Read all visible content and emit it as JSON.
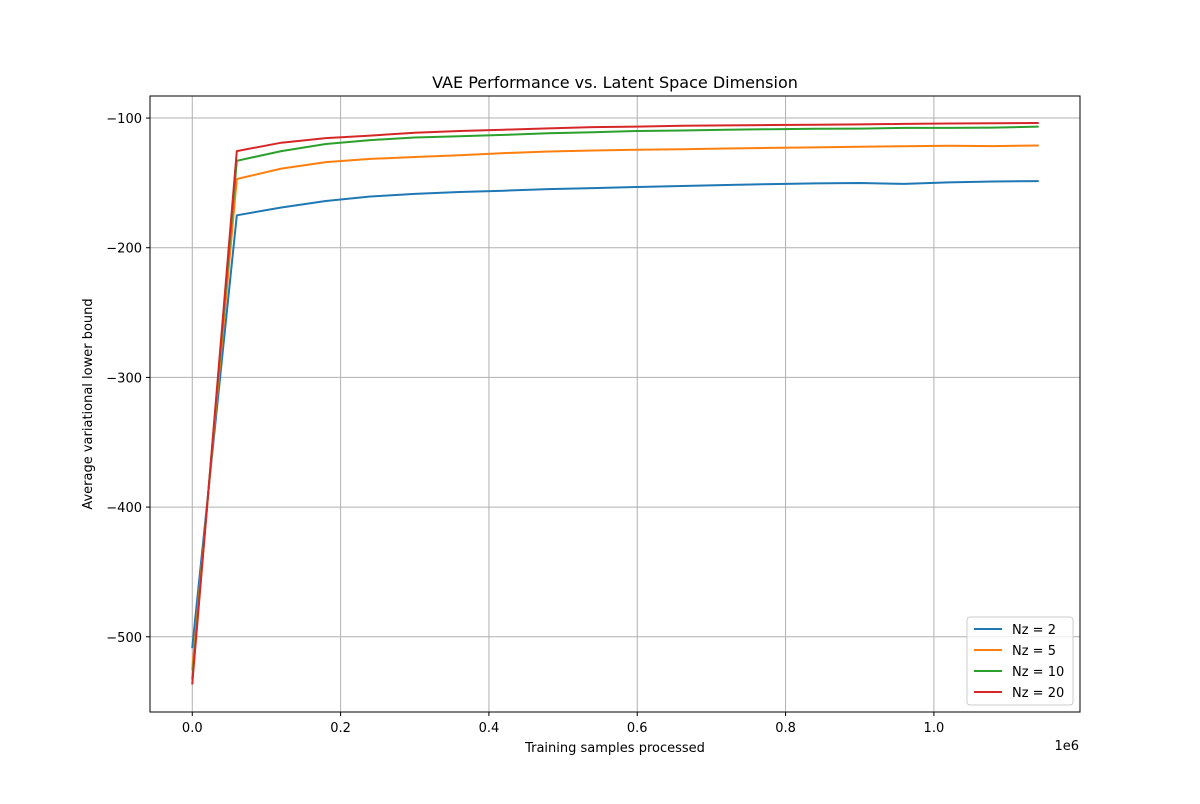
{
  "chart_data": {
    "type": "line",
    "title": "VAE Performance vs. Latent Space Dimension",
    "xlabel": "Training samples processed",
    "ylabel": "Average variational lower bound",
    "x_offset_label": "1e6",
    "xlim": [
      -0.057,
      1.197
    ],
    "ylim": [
      -558,
      -83
    ],
    "xticks": [
      0.0,
      0.2,
      0.4,
      0.6,
      0.8,
      1.0
    ],
    "xtick_labels": [
      "0.0",
      "0.2",
      "0.4",
      "0.6",
      "0.8",
      "1.0"
    ],
    "yticks": [
      -500,
      -400,
      -300,
      -200,
      -100
    ],
    "ytick_labels": [
      "−500",
      "−400",
      "−300",
      "−200",
      "−100"
    ],
    "grid": true,
    "legend_position": "lower-right",
    "x": [
      0.0,
      0.06,
      0.12,
      0.18,
      0.24,
      0.3,
      0.36,
      0.42,
      0.48,
      0.54,
      0.6,
      0.66,
      0.72,
      0.78,
      0.84,
      0.9,
      0.96,
      1.02,
      1.08,
      1.14
    ],
    "series": [
      {
        "name": "Nz = 2",
        "color": "#1f77b4",
        "values": [
          -508,
          -175,
          -169,
          -164,
          -160.5,
          -158.5,
          -157,
          -156,
          -154.8,
          -154,
          -153.2,
          -152.4,
          -151.6,
          -150.9,
          -150.4,
          -150.1,
          -150.8,
          -149.6,
          -148.9,
          -148.6
        ]
      },
      {
        "name": "Nz = 5",
        "color": "#ff7f0e",
        "values": [
          -525,
          -147,
          -139,
          -134,
          -131.5,
          -130,
          -128.7,
          -127,
          -125.8,
          -125,
          -124.4,
          -124,
          -123.5,
          -123,
          -122.6,
          -122.1,
          -121.7,
          -121.4,
          -121.6,
          -121.2
        ]
      },
      {
        "name": "Nz = 10",
        "color": "#2ca02c",
        "values": [
          -532,
          -133,
          -125.5,
          -120,
          -117,
          -115,
          -114,
          -113,
          -111.8,
          -111,
          -110,
          -109.6,
          -109,
          -108.6,
          -108.3,
          -108.1,
          -107.6,
          -107.6,
          -107.4,
          -106.6
        ]
      },
      {
        "name": "Nz = 20",
        "color": "#d62728",
        "values": [
          -536,
          -125.5,
          -119,
          -115.5,
          -113.5,
          -111.3,
          -110,
          -109,
          -108,
          -107,
          -106.6,
          -106,
          -105.7,
          -105.4,
          -105.1,
          -104.9,
          -104.5,
          -104.2,
          -104,
          -103.8
        ]
      }
    ]
  }
}
